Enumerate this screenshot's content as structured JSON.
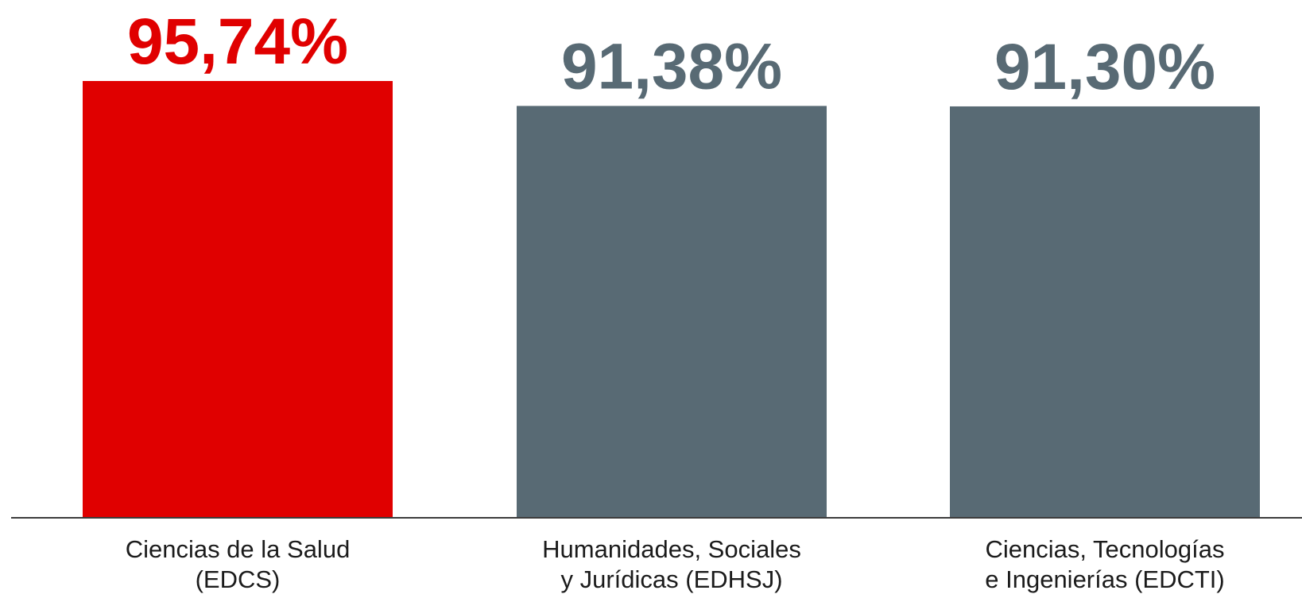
{
  "colors": {
    "highlight": "#e00000",
    "default": "#586a74",
    "axis": "#3c3c3c",
    "background": "#ffffff"
  },
  "chart_data": {
    "type": "bar",
    "categories": [
      [
        "Ciencias de la Salud",
        "(EDCS)"
      ],
      [
        "Humanidades, Sociales",
        "y Jurídicas (EDHSJ)"
      ],
      [
        "Ciencias, Tecnologías",
        "e Ingenierías (EDCTI)"
      ]
    ],
    "values": [
      95.74,
      91.38,
      91.3
    ],
    "value_labels": [
      "95,74%",
      "91,38%",
      "91,30%"
    ],
    "highlight_index": 0,
    "title": "",
    "xlabel": "",
    "ylabel": "",
    "grid": false,
    "legend": "none"
  }
}
